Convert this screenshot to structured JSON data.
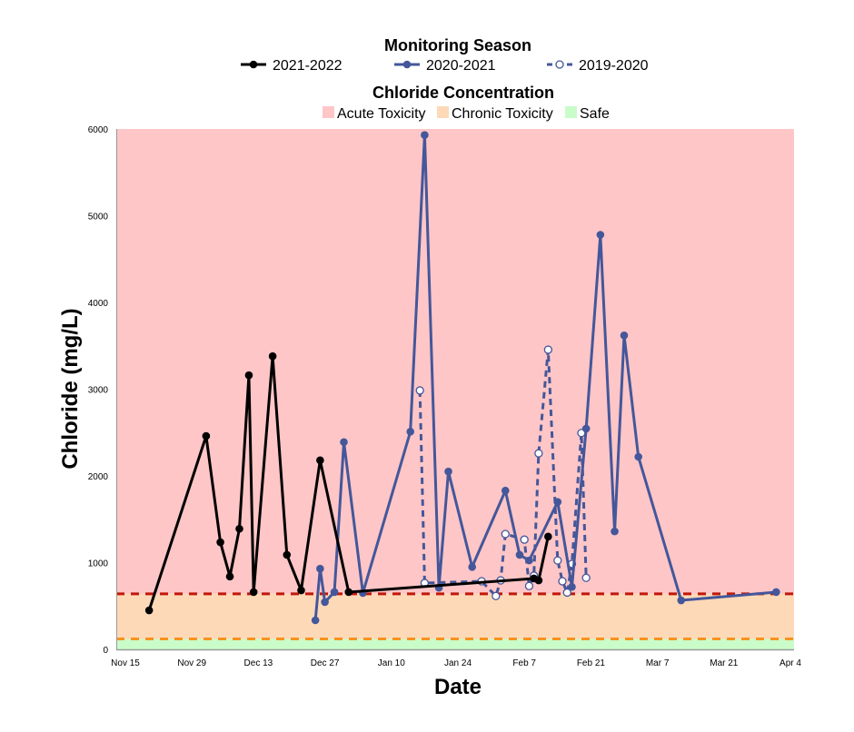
{
  "chart_data": {
    "type": "line",
    "xlabel": "Date",
    "ylabel": "Chloride (mg/L)",
    "ylim": [
      0,
      6000
    ],
    "yticks": [
      "0",
      "1000",
      "2000",
      "3000",
      "4000",
      "5000",
      "6000"
    ],
    "xticks": [
      "Nov 15",
      "Nov 29",
      "Dec 13",
      "Dec 27",
      "Jan 10",
      "Jan 24",
      "Feb 7",
      "Feb 21",
      "Mar 7",
      "Mar 21",
      "Apr 4"
    ],
    "grid": false,
    "legend_title": "Monitoring Season",
    "bands_title": "Chloride Concentration",
    "bands": [
      {
        "name": "Acute Toxicity",
        "from": 640,
        "to": 6000,
        "color": "#ffc6c7"
      },
      {
        "name": "Chronic Toxicity",
        "from": 120,
        "to": 640,
        "color": "#fdd9b8"
      },
      {
        "name": "Safe",
        "from": 0,
        "to": 120,
        "color": "#c9fcc9"
      }
    ],
    "thresholds": [
      {
        "value": 640,
        "color": "#c0180a"
      },
      {
        "value": 120,
        "color": "#f7931e"
      }
    ],
    "series": [
      {
        "name": "2021-2022",
        "color": "#000000",
        "style": "solid-filled",
        "x": [
          "Nov 20",
          "Dec 2",
          "Dec 5",
          "Dec 7",
          "Dec 9",
          "Dec 11",
          "Dec 12",
          "Dec 16",
          "Dec 19",
          "Dec 22",
          "Dec 26",
          "Jan 1",
          "Feb 9",
          "Feb 10",
          "Feb 12"
        ],
        "y": [
          450,
          2460,
          1235,
          840,
          1390,
          3160,
          660,
          3380,
          1090,
          680,
          2180,
          660,
          817,
          795,
          1300
        ]
      },
      {
        "name": "2020-2021",
        "color": "#44579a",
        "style": "solid-filled",
        "x": [
          "Dec 25",
          "Dec 26",
          "Dec 27",
          "Dec 29",
          "Dec 31",
          "Jan 4",
          "Jan 14",
          "Jan 17",
          "Jan 20",
          "Jan 22",
          "Jan 27",
          "Feb 3",
          "Feb 6",
          "Feb 8",
          "Feb 14",
          "Feb 17",
          "Feb 20",
          "Feb 23",
          "Feb 26",
          "Feb 28",
          "Mar 3",
          "Mar 12",
          "Apr 1"
        ],
        "y": [
          335,
          930,
          545,
          660,
          2390,
          650,
          2510,
          5930,
          710,
          2050,
          950,
          1830,
          1090,
          1025,
          1700,
          720,
          2545,
          4780,
          1360,
          3620,
          2220,
          565,
          660
        ]
      },
      {
        "name": "2019-2020",
        "color": "#44579a",
        "style": "dashed-open",
        "x": [
          "Jan 16",
          "Jan 17",
          "Jan 29",
          "Feb 1",
          "Feb 2",
          "Feb 3",
          "Feb 7",
          "Feb 8",
          "Feb 9",
          "Feb 10",
          "Feb 12",
          "Feb 14",
          "Feb 15",
          "Feb 16",
          "Feb 17",
          "Feb 19",
          "Feb 20"
        ],
        "y": [
          2985,
          765,
          785,
          615,
          795,
          1330,
          1265,
          730,
          850,
          2260,
          3455,
          1025,
          785,
          655,
          985,
          2495,
          825
        ]
      }
    ]
  }
}
